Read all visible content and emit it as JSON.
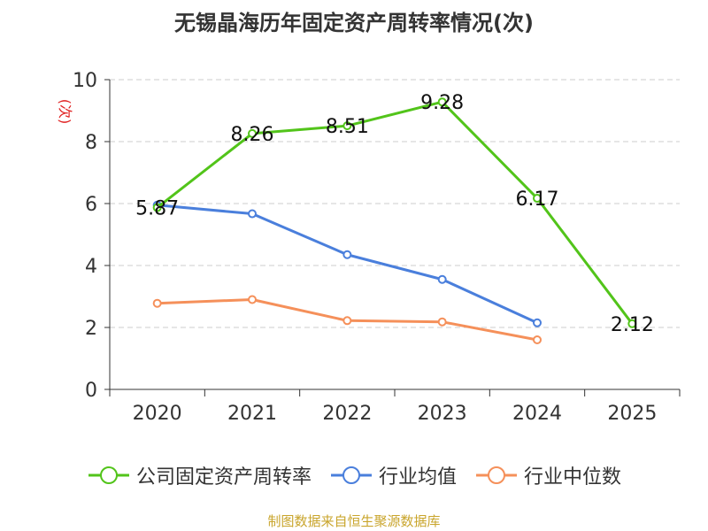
{
  "chart_data": {
    "type": "line",
    "title": "无锡晶海历年固定资产周转率情况(次)",
    "ylabel": "(次)",
    "xlabel": "",
    "ylim": [
      0,
      10
    ],
    "yticks": [
      0,
      2,
      4,
      6,
      8,
      10
    ],
    "categories": [
      "2020",
      "2021",
      "2022",
      "2023",
      "2024",
      "2025"
    ],
    "series": [
      {
        "name": "公司固定资产周转率",
        "color": "#52c41a",
        "values": [
          5.87,
          8.26,
          8.51,
          9.28,
          6.17,
          2.12
        ],
        "labels": [
          "5.87",
          "8.26",
          "8.51",
          "9.28",
          "6.17",
          "2.12"
        ],
        "show_labels": true
      },
      {
        "name": "行业均值",
        "color": "#4a7fdc",
        "values": [
          5.95,
          5.67,
          4.35,
          3.55,
          2.15,
          null
        ],
        "show_labels": false
      },
      {
        "name": "行业中位数",
        "color": "#f5905a",
        "values": [
          2.78,
          2.9,
          2.22,
          2.18,
          1.6,
          null
        ],
        "show_labels": false
      }
    ],
    "grid": true,
    "legend_position": "bottom"
  },
  "source": {
    "text": "制图数据来自恒生聚源数据库",
    "color": "#c9a52c"
  },
  "ylabel_color": "#e02020"
}
